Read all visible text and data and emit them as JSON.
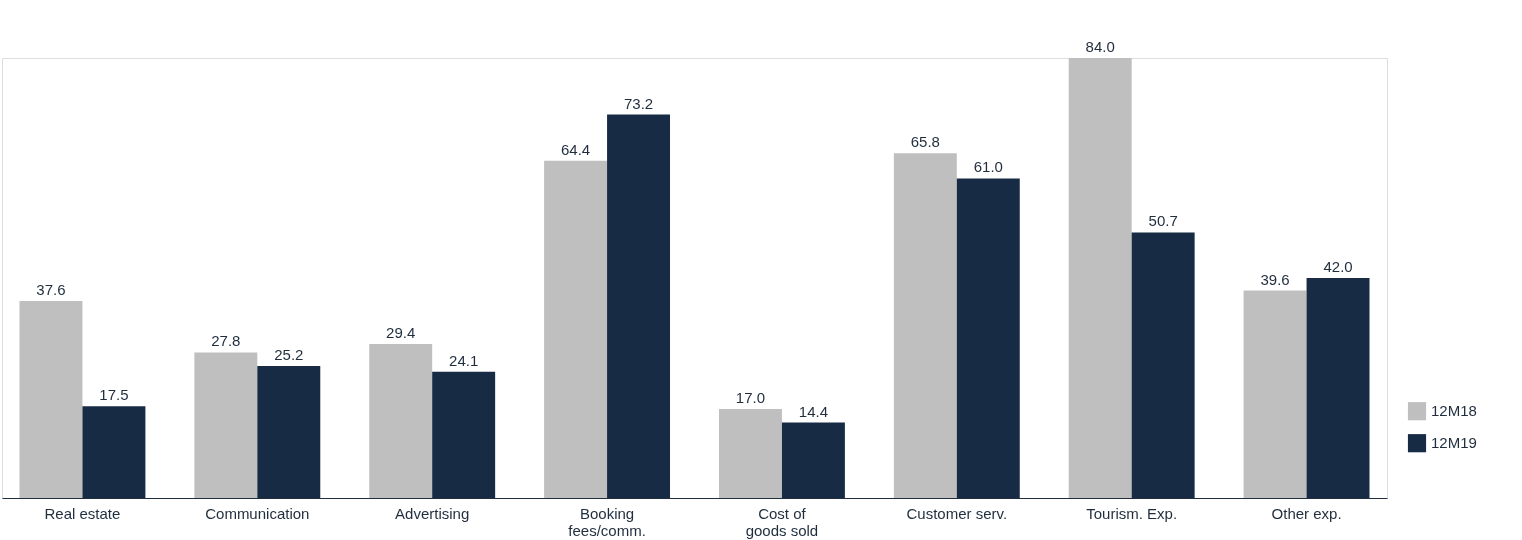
{
  "chart_data": {
    "type": "bar",
    "categories": [
      "Real estate",
      "Communication",
      "Advertising",
      "Booking\nfees/comm.",
      "Cost of\ngoods sold",
      "Customer serv.",
      "Tourism. Exp.",
      "Other exp."
    ],
    "series": [
      {
        "name": "12M18",
        "color": "#bfbfbf",
        "values": [
          37.6,
          27.8,
          29.4,
          64.4,
          17.0,
          65.8,
          84.0,
          39.6
        ],
        "value_labels": [
          "37.6",
          "27.8",
          "29.4",
          "64.4",
          "17.0",
          "65.8",
          "84.0",
          "39.6"
        ]
      },
      {
        "name": "12M19",
        "color": "#172b45",
        "values": [
          17.5,
          25.2,
          24.1,
          73.2,
          14.4,
          61.0,
          50.7,
          42.0
        ],
        "value_labels": [
          "17.5",
          "25.2",
          "24.1",
          "73.2",
          "14.4",
          "61.0",
          "50.7",
          "42.0"
        ]
      }
    ],
    "legend": "right",
    "tick_labels": "x"
  }
}
